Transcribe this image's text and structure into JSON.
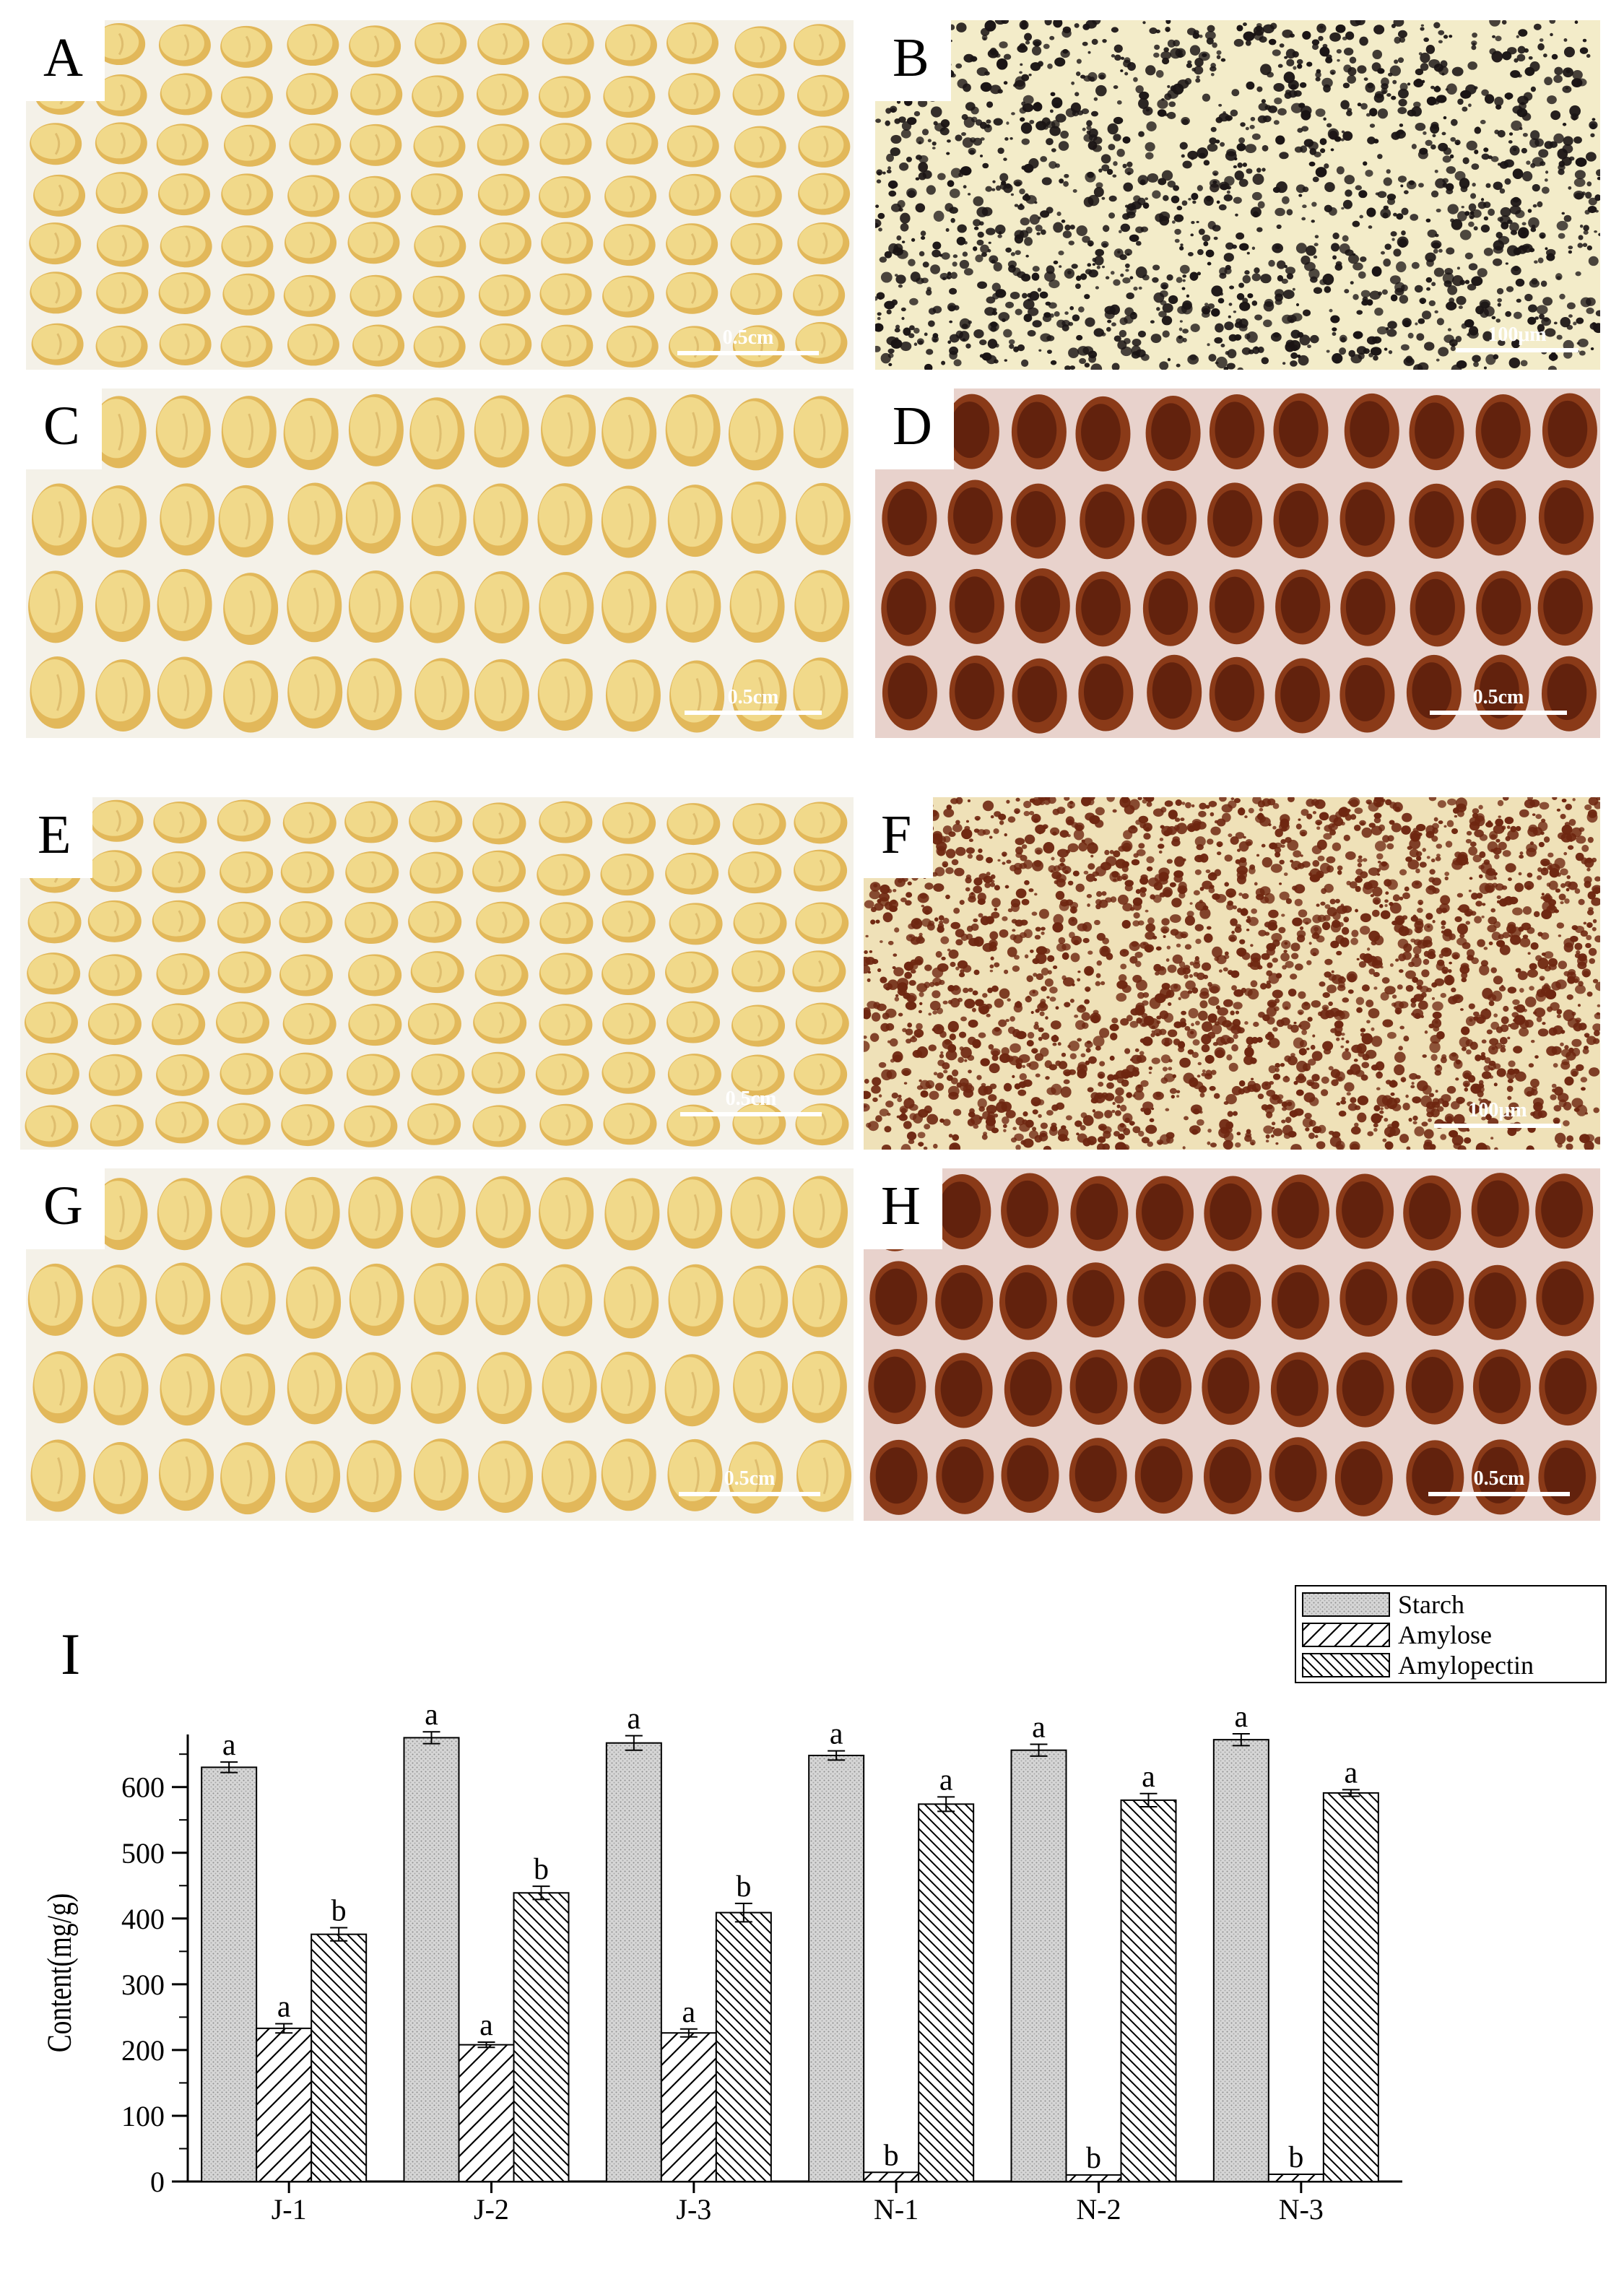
{
  "panels": [
    {
      "letter": "A",
      "scale": "0.5cm"
    },
    {
      "letter": "B",
      "scale": "100μm"
    },
    {
      "letter": "C",
      "scale": "0.5cm"
    },
    {
      "letter": "D",
      "scale": "0.5cm"
    },
    {
      "letter": "E",
      "scale": "0.5cm"
    },
    {
      "letter": "F",
      "scale": "100μm"
    },
    {
      "letter": "G",
      "scale": "0.5cm"
    },
    {
      "letter": "H",
      "scale": "0.5cm"
    }
  ],
  "chart_panel_letter": "I",
  "colors": {
    "seed_light": "#f1d98a",
    "seed_dark": "#e2b85a",
    "seed_bg": "#f4f1e8",
    "stain_bg": "#e8d2cc",
    "stain_dark": "#5a1e0c",
    "stain_mid": "#8a3a18",
    "granule_bg_b": "#f3ecc9",
    "granule_dot_b": "#1a1414",
    "granule_bg_f": "#efe1b8",
    "granule_dot_f": "#6e2610",
    "bar_starch": "#d2d2d2"
  },
  "chart_data": {
    "type": "bar",
    "ylabel": "Content(mg/g)",
    "ylim": [
      0,
      680
    ],
    "yticks": [
      0,
      100,
      200,
      300,
      400,
      500,
      600
    ],
    "categories": [
      "J-1",
      "J-2",
      "J-3",
      "N-1",
      "N-2",
      "N-3"
    ],
    "legend_position": "top-right",
    "series": [
      {
        "name": "Starch",
        "pattern": "dots",
        "values": [
          630,
          675,
          667,
          648,
          656,
          672
        ],
        "errors": [
          8,
          9,
          11,
          7,
          9,
          9
        ],
        "letters": [
          "a",
          "a",
          "a",
          "a",
          "a",
          "a"
        ]
      },
      {
        "name": "Amylose",
        "pattern": "hatch-forward",
        "values": [
          233,
          208,
          226,
          14,
          10,
          11
        ],
        "errors": [
          7,
          4,
          6,
          0,
          0,
          0
        ],
        "letters": [
          "a",
          "a",
          "a",
          "b",
          "b",
          "b"
        ]
      },
      {
        "name": "Amylopectin",
        "pattern": "hatch-back",
        "values": [
          376,
          439,
          409,
          574,
          580,
          591
        ],
        "errors": [
          10,
          10,
          14,
          11,
          10,
          5
        ],
        "letters": [
          "b",
          "b",
          "b",
          "a",
          "a",
          "a"
        ]
      }
    ]
  }
}
